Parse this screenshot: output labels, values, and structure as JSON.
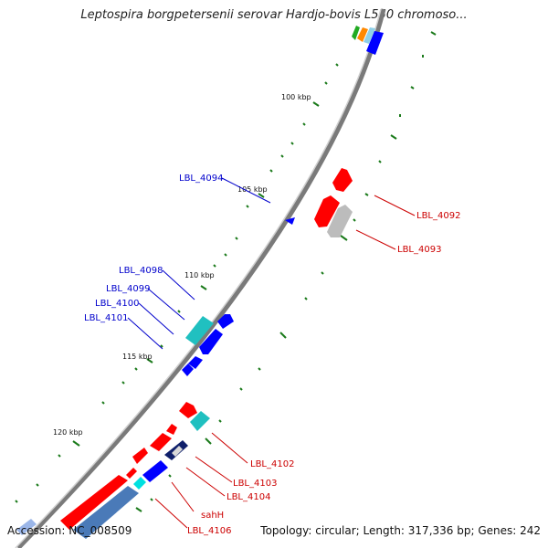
{
  "title": "Leptospira borgpetersenii serovar Hardjo-bovis L550 chromoso...",
  "footer": {
    "accession": "Accession: NC_008509",
    "summary": "Topology: circular; Length: 317,336 bp; Genes: 242"
  },
  "kbp_labels": [
    "100 kbp",
    "105 kbp",
    "110 kbp",
    "115 kbp",
    "120 kbp"
  ],
  "gene_labels": {
    "blue": [
      "LBL_4094",
      "LBL_4098",
      "LBL_4099",
      "LBL_4100",
      "LBL_4101"
    ],
    "red": [
      "LBL_4092",
      "LBL_4093",
      "LBL_4102",
      "LBL_4103",
      "LBL_4104",
      "sahH",
      "LBL_4106"
    ]
  },
  "colors": {
    "forward_cds": "#0000ff",
    "reverse_cds": "#ff0000",
    "cyan_feature": "#20c0c0",
    "grey_feature": "#c8c8c8",
    "backbone": "#888888",
    "ticks": "#1a7a1a",
    "blue_label": "#0000cc",
    "red_label": "#cc0000"
  }
}
